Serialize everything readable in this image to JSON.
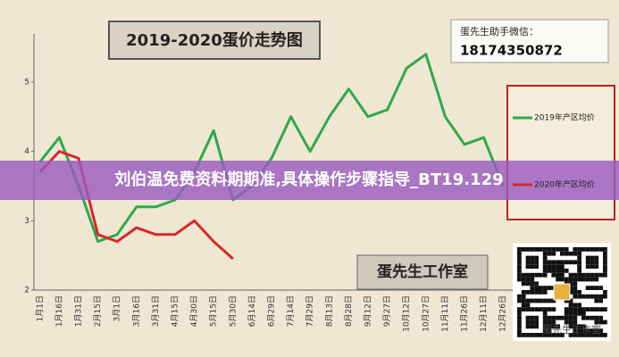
{
  "chart_data": {
    "type": "line",
    "title": "2019-2020蛋价走势图",
    "categories": [
      "1月1日",
      "1月16日",
      "1月31日",
      "2月15日",
      "3月1日",
      "3月16日",
      "3月31日",
      "4月15日",
      "4月30日",
      "5月15日",
      "5月30日",
      "6月14日",
      "6月29日",
      "7月14日",
      "7月29日",
      "8月13日",
      "8月28日",
      "9月12日",
      "9月27日",
      "10月12日",
      "10月27日",
      "11月11日",
      "11月26日",
      "12月11日",
      "12月26日"
    ],
    "series": [
      {
        "name": "2019年产区均价",
        "color": "#2fa84f",
        "values": [
          3.85,
          4.2,
          3.5,
          2.7,
          2.8,
          3.2,
          3.2,
          3.3,
          3.7,
          4.3,
          3.3,
          3.5,
          3.9,
          4.5,
          4.0,
          4.5,
          4.9,
          4.5,
          4.6,
          5.2,
          5.4,
          4.5,
          4.1,
          4.2,
          3.5
        ]
      },
      {
        "name": "2020年产区均价",
        "color": "#d9262c",
        "values": [
          3.7,
          4.0,
          3.9,
          2.8,
          2.7,
          2.9,
          2.8,
          2.8,
          3.0,
          2.7,
          2.45,
          null,
          null,
          null,
          null,
          null,
          null,
          null,
          null,
          null,
          null,
          null,
          null,
          null,
          null
        ]
      }
    ],
    "ylim": [
      2,
      5.7
    ],
    "yticks": [
      2,
      3,
      4,
      5
    ],
    "contact_label": "蛋先生助手微信：",
    "contact_number": "18174350872",
    "studio_label": "蛋先生工作室",
    "banner": "刘伯温免费资料期期准,具体操作步骤指导_BT19.129",
    "watermark": "蛋先生工作室"
  }
}
